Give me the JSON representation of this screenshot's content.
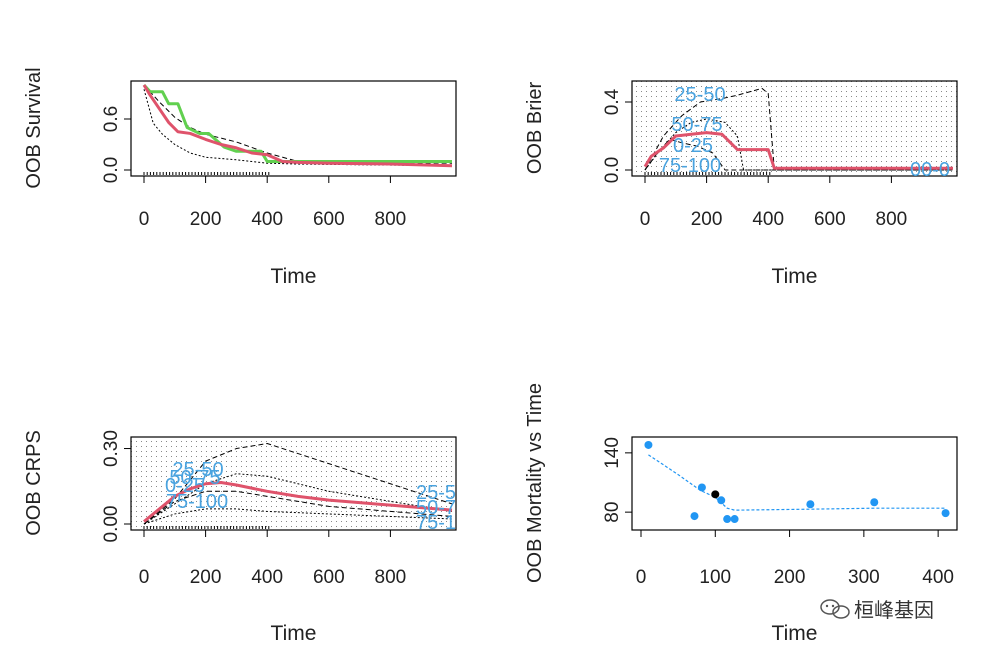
{
  "chart_data": [
    {
      "type": "line",
      "panel": "survival",
      "title": "",
      "xlabel": "Time",
      "ylabel": "OOB Survival",
      "xlim": [
        0,
        1000
      ],
      "ylim": [
        0,
        1
      ],
      "xticks": [
        "0",
        "200",
        "400",
        "600",
        "800"
      ],
      "yticks": [
        "0.0",
        "0.6"
      ],
      "series": [
        {
          "name": "green",
          "color": "#61d04f",
          "x": [
            0,
            20,
            60,
            80,
            110,
            140,
            180,
            210,
            260,
            300,
            380,
            400,
            460,
            580,
            1000
          ],
          "y": [
            1.0,
            0.92,
            0.92,
            0.78,
            0.78,
            0.5,
            0.43,
            0.43,
            0.27,
            0.22,
            0.22,
            0.1,
            0.1,
            0.1,
            0.1
          ]
        },
        {
          "name": "red",
          "color": "#df536b",
          "x": [
            0,
            20,
            50,
            80,
            110,
            150,
            200,
            250,
            300,
            350,
            400,
            450,
            500,
            600,
            800,
            900,
            1000
          ],
          "y": [
            1.0,
            0.88,
            0.72,
            0.56,
            0.45,
            0.43,
            0.36,
            0.3,
            0.26,
            0.2,
            0.18,
            0.1,
            0.09,
            0.08,
            0.07,
            0.06,
            0.05
          ]
        },
        {
          "name": "upper-dotted",
          "color": "#000000",
          "x": [
            0,
            50,
            100,
            150,
            200,
            300,
            400,
            500,
            1000
          ],
          "y": [
            1.0,
            0.8,
            0.62,
            0.5,
            0.42,
            0.33,
            0.2,
            0.1,
            0.08
          ]
        },
        {
          "name": "lower-dotted",
          "color": "#000000",
          "x": [
            0,
            30,
            60,
            100,
            150,
            200,
            300,
            400,
            500,
            1000
          ],
          "y": [
            0.95,
            0.55,
            0.42,
            0.3,
            0.2,
            0.15,
            0.12,
            0.08,
            0.07,
            0.05
          ]
        }
      ]
    },
    {
      "type": "line",
      "panel": "brier",
      "xlabel": "Time",
      "ylabel": "OOB Brier",
      "xlim": [
        0,
        1000
      ],
      "ylim": [
        0,
        0.5
      ],
      "xticks": [
        "0",
        "200",
        "400",
        "600",
        "800"
      ],
      "yticks": [
        "0.0",
        "0.4"
      ],
      "labels": [
        "25-50",
        "50-75",
        "0-25",
        "75-100",
        "00-0"
      ],
      "series": [
        {
          "name": "overall",
          "color": "#df536b",
          "x": [
            0,
            20,
            60,
            100,
            150,
            200,
            250,
            300,
            400,
            420,
            1000
          ],
          "y": [
            0.02,
            0.08,
            0.13,
            0.2,
            0.21,
            0.22,
            0.21,
            0.12,
            0.12,
            0.01,
            0.01
          ]
        },
        {
          "name": "25-50",
          "color": "#000000",
          "x": [
            0,
            60,
            120,
            180,
            250,
            300,
            380,
            400,
            420,
            1000
          ],
          "y": [
            0.0,
            0.2,
            0.32,
            0.4,
            0.42,
            0.44,
            0.48,
            0.45,
            0.0,
            0.0
          ]
        },
        {
          "name": "50-75",
          "color": "#000000",
          "x": [
            0,
            50,
            100,
            150,
            200,
            260,
            300,
            320,
            1000
          ],
          "y": [
            0.0,
            0.12,
            0.22,
            0.28,
            0.3,
            0.28,
            0.2,
            0.0,
            0.0
          ]
        },
        {
          "name": "0-25",
          "color": "#000000",
          "x": [
            0,
            40,
            80,
            120,
            170,
            220,
            260,
            1000
          ],
          "y": [
            0.0,
            0.1,
            0.18,
            0.16,
            0.14,
            0.1,
            0.0,
            0.0
          ]
        }
      ]
    },
    {
      "type": "line",
      "panel": "crps",
      "xlabel": "Time",
      "ylabel": "OOB CRPS",
      "xlim": [
        0,
        1000
      ],
      "ylim": [
        0,
        0.33
      ],
      "xticks": [
        "0",
        "200",
        "400",
        "600",
        "800"
      ],
      "yticks": [
        "0.00",
        "0.30"
      ],
      "labels": [
        "25-50",
        "50-75",
        "0-25",
        "75-100",
        "25-5",
        "50-7",
        "75-1"
      ],
      "series": [
        {
          "name": "overall",
          "color": "#df536b",
          "x": [
            0,
            50,
            100,
            150,
            200,
            250,
            300,
            400,
            500,
            600,
            700,
            800,
            900,
            1000
          ],
          "y": [
            0.01,
            0.06,
            0.11,
            0.14,
            0.16,
            0.165,
            0.155,
            0.13,
            0.11,
            0.095,
            0.085,
            0.075,
            0.065,
            0.055
          ]
        },
        {
          "name": "25-50",
          "color": "#000000",
          "x": [
            0,
            100,
            200,
            300,
            400,
            500,
            600,
            700,
            800,
            900,
            1000
          ],
          "y": [
            0.0,
            0.1,
            0.25,
            0.3,
            0.32,
            0.28,
            0.24,
            0.2,
            0.16,
            0.12,
            0.08
          ]
        },
        {
          "name": "50-75",
          "color": "#000000",
          "x": [
            0,
            100,
            200,
            300,
            400,
            500,
            600,
            700,
            800,
            900,
            1000
          ],
          "y": [
            0.0,
            0.08,
            0.16,
            0.2,
            0.19,
            0.16,
            0.13,
            0.11,
            0.09,
            0.07,
            0.05
          ]
        },
        {
          "name": "0-25",
          "color": "#000000",
          "x": [
            0,
            100,
            200,
            300,
            400,
            500,
            600,
            700,
            800,
            900,
            1000
          ],
          "y": [
            0.0,
            0.09,
            0.13,
            0.13,
            0.11,
            0.09,
            0.07,
            0.06,
            0.05,
            0.04,
            0.03
          ]
        },
        {
          "name": "75-100",
          "color": "#000000",
          "x": [
            0,
            100,
            200,
            300,
            400,
            500,
            600,
            700,
            800,
            900,
            1000
          ],
          "y": [
            0.0,
            0.04,
            0.06,
            0.06,
            0.05,
            0.045,
            0.04,
            0.035,
            0.03,
            0.025,
            0.02
          ]
        }
      ]
    },
    {
      "type": "scatter",
      "panel": "mortality",
      "xlabel": "Time",
      "ylabel": "OOB Mortality vs Time",
      "xlim": [
        0,
        420
      ],
      "ylim": [
        68,
        152
      ],
      "xticks": [
        "0",
        "100",
        "200",
        "300",
        "400"
      ],
      "yticks": [
        "80",
        "140"
      ],
      "points": [
        {
          "x": 10,
          "y": 148,
          "color": "#2196f3"
        },
        {
          "x": 72,
          "y": 76,
          "color": "#2196f3"
        },
        {
          "x": 82,
          "y": 105,
          "color": "#2196f3"
        },
        {
          "x": 100,
          "y": 98,
          "color": "#000000"
        },
        {
          "x": 108,
          "y": 92,
          "color": "#2196f3"
        },
        {
          "x": 116,
          "y": 73,
          "color": "#2196f3"
        },
        {
          "x": 126,
          "y": 73,
          "color": "#2196f3"
        },
        {
          "x": 228,
          "y": 88,
          "color": "#2196f3"
        },
        {
          "x": 314,
          "y": 90,
          "color": "#2196f3"
        },
        {
          "x": 410,
          "y": 79,
          "color": "#2196f3"
        }
      ],
      "trend": {
        "color": "#2196f3",
        "x": [
          10,
          50,
          80,
          100,
          116,
          126,
          228,
          314,
          410
        ],
        "y": [
          138,
          118,
          102,
          95,
          84,
          82,
          83,
          84,
          84
        ]
      }
    }
  ],
  "watermark": {
    "text": "桓峰基因",
    "icon": "wechat-icon"
  }
}
